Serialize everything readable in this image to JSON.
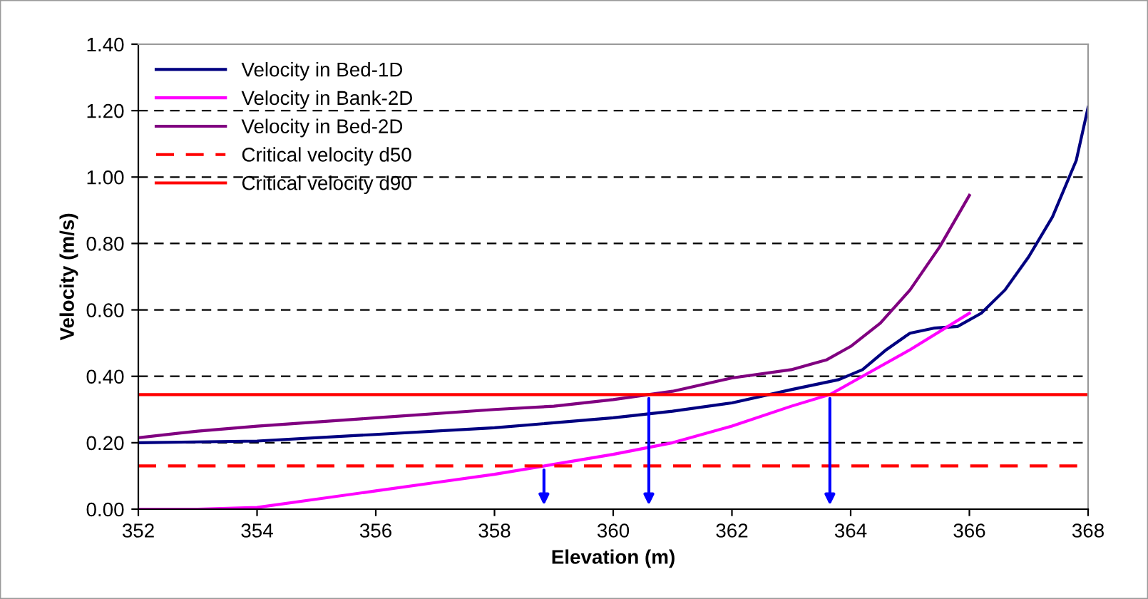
{
  "chart_data": {
    "type": "line",
    "xlabel": "Elevation (m)",
    "ylabel": "Velocity (m/s)",
    "xlim": [
      352,
      368
    ],
    "xticks": [
      352,
      354,
      356,
      358,
      360,
      362,
      364,
      366,
      368
    ],
    "ylim": [
      0,
      1.4
    ],
    "yticks": [
      {
        "value": 0,
        "label": "0.00"
      },
      {
        "value": 0.2,
        "label": "0.20"
      },
      {
        "value": 0.4,
        "label": "0.40"
      },
      {
        "value": 0.6,
        "label": "0.60"
      },
      {
        "value": 0.8,
        "label": "0.80"
      },
      {
        "value": 1.0,
        "label": "1.00"
      },
      {
        "value": 1.2,
        "label": "1.20"
      },
      {
        "value": 1.4,
        "label": "1.40"
      }
    ],
    "grid": "y",
    "legend": "top left",
    "marker": "none",
    "series": [
      {
        "name": "Velocity in Bed-1D",
        "color": "#000080",
        "x": [
          352,
          354,
          356,
          358,
          360,
          361,
          362,
          363,
          363.8,
          364.2,
          364.6,
          365,
          365.4,
          365.8,
          366.2,
          366.6,
          367,
          367.4,
          367.8,
          368
        ],
        "values": [
          0.2,
          0.205,
          0.225,
          0.245,
          0.275,
          0.295,
          0.32,
          0.36,
          0.39,
          0.42,
          0.48,
          0.53,
          0.545,
          0.55,
          0.59,
          0.66,
          0.76,
          0.88,
          1.05,
          1.21
        ]
      },
      {
        "name": "Velocity in Bank-2D",
        "color": "#ff00ff",
        "x": [
          352,
          353,
          354,
          355,
          356,
          357,
          358,
          359,
          360,
          361,
          362,
          363,
          363.65,
          364,
          365,
          366
        ],
        "values": [
          0.0,
          0.0,
          0.005,
          0.03,
          0.055,
          0.08,
          0.105,
          0.135,
          0.165,
          0.2,
          0.25,
          0.31,
          0.345,
          0.38,
          0.48,
          0.59
        ]
      },
      {
        "name": "Velocity in Bed-2D",
        "color": "#800080",
        "x": [
          352,
          353,
          354,
          356,
          358,
          359,
          360,
          361,
          362,
          363,
          363.6,
          364,
          364.5,
          365,
          365.5,
          366
        ],
        "values": [
          0.215,
          0.235,
          0.25,
          0.275,
          0.3,
          0.31,
          0.33,
          0.355,
          0.395,
          0.42,
          0.45,
          0.49,
          0.56,
          0.66,
          0.79,
          0.945
        ]
      },
      {
        "name": "Critical velocity d50",
        "color": "#ff0000",
        "line_style": "dashed",
        "x": [
          352,
          368
        ],
        "values": [
          0.13,
          0.13
        ]
      },
      {
        "name": "Critical velocity d90",
        "color": "#ff0000",
        "line_style": "solid",
        "x": [
          352,
          368
        ],
        "values": [
          0.345,
          0.345
        ]
      }
    ]
  }
}
